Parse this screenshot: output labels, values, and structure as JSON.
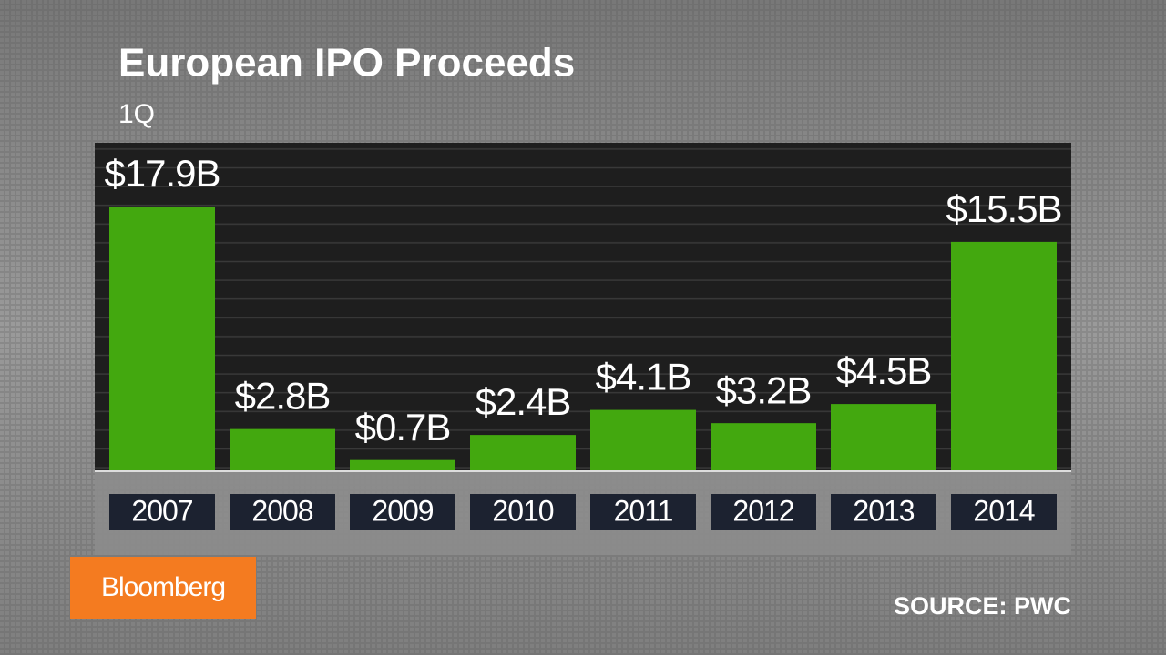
{
  "chart_data": {
    "type": "bar",
    "title": "European IPO Proceeds",
    "subtitle": "1Q",
    "categories": [
      "2007",
      "2008",
      "2009",
      "2010",
      "2011",
      "2012",
      "2013",
      "2014"
    ],
    "values": [
      17.9,
      2.8,
      0.7,
      2.4,
      4.1,
      3.2,
      4.5,
      15.5
    ],
    "value_labels": [
      "$17.9B",
      "$2.8B",
      "$0.7B",
      "$2.4B",
      "$4.1B",
      "$3.2B",
      "$4.5B",
      "$15.5B"
    ],
    "color": "#43a80f",
    "source": "SOURCE: PWC",
    "brand": "Bloomberg"
  }
}
